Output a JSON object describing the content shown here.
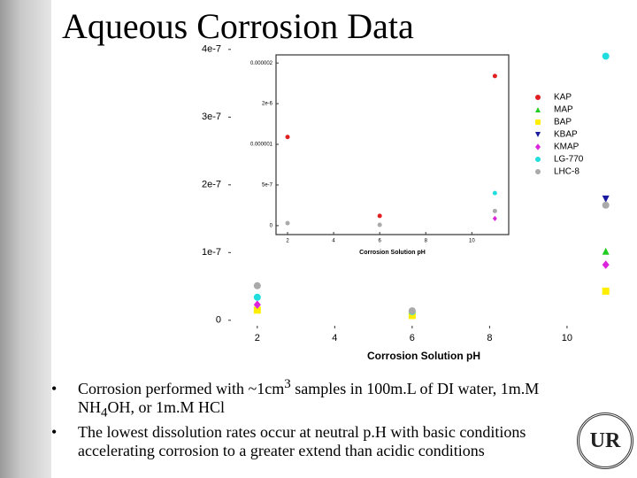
{
  "slide": {
    "title": "Aqueous Corrosion Data",
    "bullets": [
      [
        "Corrosion performed with ~1cm",
        "3",
        " samples in 100m.L of DI water, 1m.M NH",
        "4",
        "OH, or 1m.M HCl"
      ],
      [
        "The lowest dissolution rates occur at neutral p.H with basic conditions accelerating corrosion to a greater extend than acidic conditions"
      ]
    ],
    "logo_text": "UR"
  },
  "chart_data": [
    {
      "type": "scatter",
      "x_label": "Corrosion Solution pH",
      "legend": "upper right",
      "x": [
        2,
        6,
        11
      ],
      "xlim": [
        1.25,
        11.35
      ],
      "xticks": [
        2,
        4,
        6,
        8,
        10
      ],
      "ylim": [
        -1.2e-08,
        4.05e-07
      ],
      "yticks": [
        0,
        1e-07,
        2e-07,
        3e-07,
        4e-07
      ],
      "series": [
        {
          "name": "KAP",
          "color": "#e02020",
          "marker": "circle",
          "values": [
            null,
            null,
            null
          ]
        },
        {
          "name": "MAP",
          "color": "#22cc22",
          "marker": "triangle",
          "values": [
            1.9e-08,
            null,
            1.02e-07
          ]
        },
        {
          "name": "BAP",
          "color": "#ffee00",
          "marker": "square",
          "values": [
            1.5e-08,
            7e-09,
            4.3e-08
          ]
        },
        {
          "name": "KBAP",
          "color": "#1a1aa0",
          "marker": "triangle-down",
          "values": [
            null,
            null,
            1.79e-07
          ]
        },
        {
          "name": "KMAP",
          "color": "#dd22dd",
          "marker": "diamond",
          "values": [
            2.3e-08,
            null,
            8.2e-08
          ]
        },
        {
          "name": "LG-770",
          "color": "#22dddd",
          "marker": "circle",
          "values": [
            3.4e-08,
            1.3e-08,
            3.9e-07
          ]
        },
        {
          "name": "LHC-8",
          "color": "#aaaaaa",
          "marker": "circle",
          "values": [
            5.1e-08,
            1.4e-08,
            1.7e-07
          ]
        }
      ]
    },
    {
      "type": "scatter",
      "x_label": "Corrosion Solution pH",
      "x": [
        2,
        6,
        11
      ],
      "xlim": [
        1.5,
        11.6
      ],
      "xticks": [
        2,
        4,
        6,
        8,
        10
      ],
      "ylim": [
        -1.1e-07,
        2.1e-06
      ],
      "yticks": [
        0,
        5e-07,
        1e-06,
        {
          "value": 1.5e-06,
          "label": "2e-6"
        },
        2e-06
      ],
      "series": [
        {
          "color": "#e02020",
          "marker": "circle",
          "values": [
            1.09e-06,
            1.2e-07,
            1.84e-06
          ]
        },
        {
          "color": "#dd22dd",
          "marker": "diamond",
          "values": [
            null,
            null,
            8.7e-08
          ]
        },
        {
          "color": "#22dddd",
          "marker": "circle",
          "values": [
            null,
            null,
            4e-07
          ]
        },
        {
          "color": "#aaaaaa",
          "marker": "circle",
          "values": [
            3e-08,
            1e-08,
            1.8e-07
          ]
        }
      ]
    }
  ]
}
